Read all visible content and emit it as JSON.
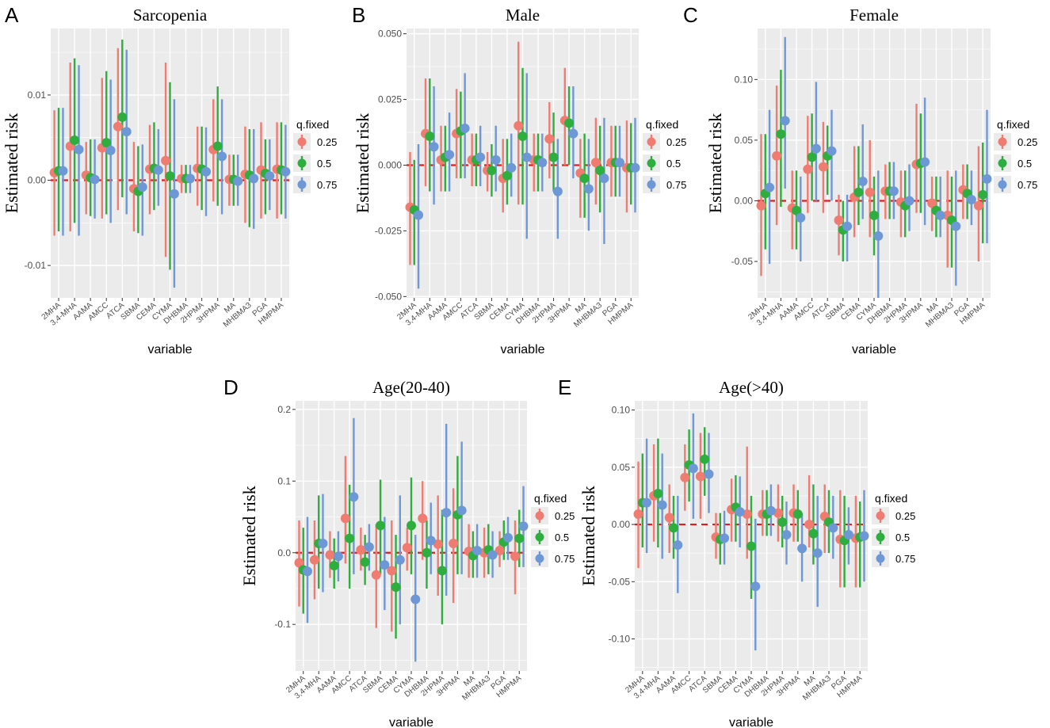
{
  "colors": {
    "q25": "#F07B71",
    "q50": "#2DAE3E",
    "q75": "#6E97D6",
    "ref_line": "#E41A1C",
    "panel_bg": "#EBEBEB",
    "grid": "#FFFFFF"
  },
  "legend": {
    "title": "q.fixed",
    "labels": [
      "0.25",
      "0.5",
      "0.75"
    ]
  },
  "chart_data": [
    {
      "label": "A",
      "title": "Sarcopenia",
      "type": "pointrange",
      "ylabel": "Estimated risk",
      "xlabel": "variable",
      "ylim": [
        -0.0138,
        0.0178
      ],
      "yticks": [
        -0.01,
        0.0,
        0.01
      ],
      "ytick_labels": [
        "-0.01",
        "0.00",
        "0.01"
      ],
      "categories": [
        "2MHA",
        "3,4-MHA",
        "AAMA",
        "AMCC",
        "ATCA",
        "SBMA",
        "CEMA",
        "CYMA",
        "DHBMA",
        "2HPMA",
        "3HPMA",
        "MA",
        "MHBMA3",
        "PGA",
        "HMPMA"
      ],
      "series": [
        {
          "name": "0.25",
          "estimate": [
            0.0009,
            0.004,
            0.0006,
            0.0038,
            0.0063,
            -0.001,
            0.0013,
            0.0023,
            0.0002,
            0.0014,
            0.0036,
            0.0001,
            0.0007,
            0.0012,
            0.0013
          ],
          "lower": [
            -0.0065,
            -0.006,
            -0.004,
            -0.0045,
            -0.0035,
            -0.006,
            -0.004,
            -0.009,
            -0.0015,
            -0.003,
            -0.0025,
            -0.003,
            -0.005,
            -0.0045,
            -0.0045
          ],
          "upper": [
            0.0082,
            0.0138,
            0.0045,
            0.012,
            0.0155,
            0.0045,
            0.0065,
            0.0138,
            0.0018,
            0.0063,
            0.0095,
            0.003,
            0.0063,
            0.0068,
            0.0068
          ]
        },
        {
          "name": "0.5",
          "estimate": [
            0.0011,
            0.0047,
            0.0003,
            0.0044,
            0.0074,
            -0.0013,
            0.0014,
            0.0005,
            0.0002,
            0.0013,
            0.004,
            0.0001,
            0.0006,
            0.0008,
            0.0012
          ],
          "lower": [
            -0.006,
            -0.005,
            -0.0042,
            -0.004,
            -0.002,
            -0.0062,
            -0.0035,
            -0.0105,
            -0.0015,
            -0.0035,
            -0.003,
            -0.003,
            -0.0055,
            -0.004,
            -0.004
          ],
          "upper": [
            0.0085,
            0.0143,
            0.0048,
            0.0128,
            0.0165,
            0.004,
            0.0068,
            0.0115,
            0.0018,
            0.0063,
            0.011,
            0.003,
            0.006,
            0.0048,
            0.0068
          ]
        },
        {
          "name": "0.75",
          "estimate": [
            0.0011,
            0.0036,
            0.0001,
            0.0035,
            0.0057,
            -0.0008,
            0.0012,
            -0.0016,
            0.0002,
            0.001,
            0.0028,
            -0.0001,
            0.0002,
            0.0005,
            0.001
          ],
          "lower": [
            -0.0065,
            -0.0065,
            -0.0045,
            -0.005,
            -0.004,
            -0.0065,
            -0.003,
            -0.0126,
            -0.0015,
            -0.0042,
            -0.004,
            -0.003,
            -0.0057,
            -0.0035,
            -0.0045
          ],
          "upper": [
            0.0085,
            0.0135,
            0.0048,
            0.0118,
            0.0153,
            0.0042,
            0.006,
            0.0095,
            0.0018,
            0.0062,
            0.0095,
            0.003,
            0.006,
            0.0048,
            0.0065
          ]
        }
      ]
    },
    {
      "label": "B",
      "title": "Male",
      "type": "pointrange",
      "ylabel": "Estimated risk",
      "xlabel": "variable",
      "ylim": [
        -0.0505,
        0.052
      ],
      "yticks": [
        -0.05,
        -0.025,
        0.0,
        0.025,
        0.05
      ],
      "ytick_labels": [
        "-0.050",
        "-0.025",
        "0.000",
        "0.025",
        "0.050"
      ],
      "categories": [
        "2MHA",
        "3,4-MHA",
        "AAMA",
        "AMCC",
        "ATCA",
        "SBMA",
        "CEMA",
        "CYMA",
        "DHBMA",
        "2HPMA",
        "3HPMA",
        "MA",
        "MHBMA3",
        "PGA",
        "HMPMA"
      ],
      "series": [
        {
          "name": "0.25",
          "estimate": [
            -0.016,
            0.012,
            0.002,
            0.012,
            0.002,
            -0.002,
            -0.005,
            0.015,
            0.002,
            0.01,
            0.017,
            -0.003,
            0.001,
            0.001,
            -0.001
          ],
          "lower": [
            -0.038,
            -0.008,
            -0.01,
            -0.005,
            -0.008,
            -0.01,
            -0.018,
            -0.015,
            -0.01,
            -0.005,
            0.0,
            -0.02,
            -0.015,
            -0.012,
            -0.018
          ],
          "upper": [
            0.005,
            0.033,
            0.015,
            0.029,
            0.012,
            0.005,
            0.01,
            0.047,
            0.012,
            0.024,
            0.037,
            0.01,
            0.018,
            0.015,
            0.017
          ]
        },
        {
          "name": "0.5",
          "estimate": [
            -0.017,
            0.011,
            0.003,
            0.013,
            0.002,
            -0.002,
            -0.004,
            0.011,
            0.002,
            0.003,
            0.016,
            -0.005,
            -0.002,
            0.001,
            -0.001
          ],
          "lower": [
            -0.038,
            -0.01,
            -0.01,
            -0.005,
            -0.008,
            -0.012,
            -0.015,
            -0.015,
            -0.01,
            -0.01,
            0.0,
            -0.02,
            -0.018,
            -0.012,
            -0.015
          ],
          "upper": [
            0.002,
            0.033,
            0.015,
            0.028,
            0.012,
            0.008,
            0.01,
            0.037,
            0.012,
            0.02,
            0.03,
            0.012,
            0.015,
            0.015,
            0.016
          ]
        },
        {
          "name": "0.75",
          "estimate": [
            -0.019,
            0.007,
            0.004,
            0.014,
            0.003,
            0.002,
            -0.001,
            0.003,
            0.001,
            -0.01,
            0.012,
            -0.009,
            -0.005,
            0.001,
            -0.001
          ],
          "lower": [
            -0.047,
            -0.015,
            -0.01,
            -0.005,
            -0.008,
            -0.01,
            -0.012,
            -0.028,
            -0.01,
            -0.028,
            -0.005,
            -0.025,
            -0.03,
            -0.012,
            -0.018
          ],
          "upper": [
            0.008,
            0.03,
            0.02,
            0.035,
            0.015,
            0.015,
            0.012,
            0.035,
            0.012,
            0.01,
            0.03,
            0.01,
            0.018,
            0.015,
            0.018
          ]
        }
      ]
    },
    {
      "label": "C",
      "title": "Female",
      "type": "pointrange",
      "ylabel": "Estimated risk",
      "xlabel": "variable",
      "ylim": [
        -0.08,
        0.142
      ],
      "yticks": [
        -0.05,
        0.0,
        0.05,
        0.1
      ],
      "ytick_labels": [
        "-0.05",
        "0.00",
        "0.05",
        "0.10"
      ],
      "categories": [
        "2MHA",
        "3,4-MHA",
        "AAMA",
        "AMCC",
        "ATCA",
        "SBMA",
        "CEMA",
        "CYMA",
        "DHBMA",
        "2HPMA",
        "3HPMA",
        "MA",
        "MHBMA3",
        "PGA",
        "HMPMA"
      ],
      "series": [
        {
          "name": "0.25",
          "estimate": [
            -0.004,
            0.037,
            -0.006,
            0.026,
            0.028,
            -0.016,
            0.003,
            0.007,
            0.008,
            -0.001,
            0.03,
            -0.002,
            -0.012,
            0.009,
            -0.004
          ],
          "lower": [
            -0.062,
            -0.02,
            -0.04,
            -0.01,
            -0.01,
            -0.045,
            -0.03,
            -0.03,
            -0.015,
            -0.03,
            -0.01,
            -0.025,
            -0.055,
            -0.015,
            -0.05
          ],
          "upper": [
            0.055,
            0.095,
            0.025,
            0.07,
            0.065,
            0.005,
            0.045,
            0.05,
            0.03,
            0.025,
            0.08,
            0.02,
            0.025,
            0.03,
            0.045
          ]
        },
        {
          "name": "0.5",
          "estimate": [
            0.006,
            0.055,
            -0.008,
            0.036,
            0.037,
            -0.024,
            0.007,
            -0.012,
            0.008,
            -0.004,
            0.031,
            -0.008,
            -0.016,
            0.006,
            0.005
          ],
          "lower": [
            -0.04,
            -0.005,
            -0.04,
            0.0,
            0.005,
            -0.05,
            -0.02,
            -0.045,
            -0.015,
            -0.03,
            -0.01,
            -0.03,
            -0.055,
            -0.015,
            -0.035
          ],
          "upper": [
            0.055,
            0.108,
            0.025,
            0.072,
            0.062,
            0.0,
            0.045,
            0.02,
            0.032,
            0.025,
            0.072,
            0.02,
            0.02,
            0.03,
            0.048
          ]
        },
        {
          "name": "0.75",
          "estimate": [
            0.011,
            0.066,
            -0.014,
            0.043,
            0.041,
            -0.021,
            0.016,
            -0.029,
            0.008,
            0.0,
            0.032,
            -0.012,
            -0.021,
            0.001,
            0.018
          ],
          "lower": [
            -0.052,
            0.01,
            -0.05,
            0.0,
            0.0,
            -0.05,
            -0.015,
            -0.08,
            -0.015,
            -0.025,
            -0.02,
            -0.03,
            -0.07,
            -0.02,
            -0.035
          ],
          "upper": [
            0.075,
            0.135,
            0.02,
            0.098,
            0.075,
            0.005,
            0.063,
            0.025,
            0.032,
            0.03,
            0.085,
            0.02,
            0.025,
            0.025,
            0.075
          ]
        }
      ]
    },
    {
      "label": "D",
      "title": "Age(20-40)",
      "type": "pointrange",
      "ylabel": "Estimated risk",
      "xlabel": "variable",
      "ylim": [
        -0.165,
        0.212
      ],
      "yticks": [
        -0.1,
        0.0,
        0.1,
        0.2
      ],
      "ytick_labels": [
        "-0.1",
        "0.0",
        "0.1",
        "0.2"
      ],
      "categories": [
        "2MHA",
        "3,4-MHA",
        "AAMA",
        "AMCC",
        "ATCA",
        "SBMA",
        "CEMA",
        "CYMA",
        "DHBMA",
        "2HPMA",
        "3HPMA",
        "MA",
        "MHBMA3",
        "PGA",
        "HMPMA"
      ],
      "series": [
        {
          "name": "0.25",
          "estimate": [
            -0.014,
            -0.01,
            -0.003,
            0.048,
            0.004,
            -0.031,
            -0.025,
            0.007,
            0.048,
            0.012,
            0.013,
            0.002,
            0.0,
            0.003,
            -0.005
          ],
          "lower": [
            -0.075,
            -0.065,
            -0.035,
            -0.015,
            -0.025,
            -0.105,
            -0.11,
            -0.025,
            -0.01,
            -0.06,
            -0.07,
            -0.035,
            -0.035,
            -0.02,
            -0.058
          ],
          "upper": [
            0.045,
            0.045,
            0.03,
            0.135,
            0.035,
            0.04,
            0.045,
            0.035,
            0.1,
            0.08,
            0.09,
            0.04,
            0.035,
            0.03,
            0.045
          ]
        },
        {
          "name": "0.5",
          "estimate": [
            -0.024,
            0.013,
            -0.018,
            0.02,
            -0.013,
            0.038,
            -0.048,
            0.038,
            0.0,
            -0.025,
            0.053,
            -0.004,
            0.004,
            0.015,
            0.02
          ],
          "lower": [
            -0.085,
            -0.05,
            -0.05,
            -0.05,
            -0.045,
            -0.03,
            -0.12,
            -0.03,
            -0.05,
            -0.1,
            -0.03,
            -0.035,
            -0.03,
            -0.01,
            -0.02
          ],
          "upper": [
            0.035,
            0.08,
            0.02,
            0.095,
            0.025,
            0.102,
            0.025,
            0.105,
            0.045,
            0.06,
            0.135,
            0.03,
            0.04,
            0.045,
            0.06
          ]
        },
        {
          "name": "0.75",
          "estimate": [
            -0.026,
            0.013,
            -0.005,
            0.078,
            0.008,
            -0.017,
            -0.01,
            -0.065,
            0.017,
            0.056,
            0.059,
            0.003,
            -0.003,
            0.021,
            0.037
          ],
          "lower": [
            -0.098,
            -0.055,
            -0.04,
            -0.03,
            -0.025,
            -0.08,
            -0.1,
            -0.152,
            -0.03,
            -0.06,
            -0.03,
            -0.035,
            -0.035,
            -0.01,
            -0.02
          ],
          "upper": [
            0.05,
            0.082,
            0.03,
            0.188,
            0.04,
            0.05,
            0.08,
            0.025,
            0.07,
            0.18,
            0.155,
            0.04,
            0.03,
            0.05,
            0.093
          ]
        }
      ]
    },
    {
      "label": "E",
      "title": "Age(>40)",
      "type": "pointrange",
      "ylabel": "Estimated risk",
      "xlabel": "variable",
      "ylim": [
        -0.128,
        0.108
      ],
      "yticks": [
        -0.1,
        -0.05,
        0.0,
        0.05,
        0.1
      ],
      "ytick_labels": [
        "-0.10",
        "-0.05",
        "0.00",
        "0.05",
        "0.10"
      ],
      "categories": [
        "2MHA",
        "3,4-MHA",
        "AAMA",
        "AMCC",
        "ATCA",
        "SBMA",
        "CEMA",
        "CYMA",
        "DHBMA",
        "2HPMA",
        "3HPMA",
        "MA",
        "MHBMA3",
        "PGA",
        "HMPMA"
      ],
      "series": [
        {
          "name": "0.25",
          "estimate": [
            0.009,
            0.025,
            0.006,
            0.041,
            0.042,
            -0.011,
            0.013,
            0.009,
            0.009,
            0.01,
            0.01,
            0.0,
            0.007,
            -0.013,
            -0.012
          ],
          "lower": [
            -0.038,
            -0.015,
            -0.025,
            0.012,
            0.005,
            -0.03,
            -0.015,
            -0.03,
            -0.01,
            -0.015,
            -0.015,
            -0.02,
            -0.025,
            -0.055,
            -0.055
          ],
          "upper": [
            0.055,
            0.07,
            0.035,
            0.07,
            0.08,
            0.01,
            0.04,
            0.068,
            0.03,
            0.035,
            0.035,
            0.043,
            0.035,
            0.03,
            0.025
          ]
        },
        {
          "name": "0.5",
          "estimate": [
            0.019,
            0.027,
            -0.003,
            0.052,
            0.057,
            -0.013,
            0.015,
            -0.019,
            0.009,
            0.002,
            0.009,
            -0.008,
            0.002,
            -0.014,
            -0.011
          ],
          "lower": [
            -0.02,
            -0.02,
            -0.03,
            0.02,
            0.025,
            -0.035,
            -0.015,
            -0.065,
            -0.01,
            -0.02,
            -0.015,
            -0.035,
            -0.025,
            -0.055,
            -0.055
          ],
          "upper": [
            0.062,
            0.075,
            0.025,
            0.083,
            0.085,
            0.01,
            0.043,
            0.025,
            0.03,
            0.025,
            0.03,
            0.035,
            0.03,
            0.025,
            0.02
          ]
        },
        {
          "name": "0.75",
          "estimate": [
            0.019,
            0.017,
            -0.018,
            0.049,
            0.044,
            -0.012,
            0.011,
            -0.054,
            0.012,
            -0.009,
            -0.021,
            -0.025,
            -0.003,
            -0.009,
            -0.01
          ],
          "lower": [
            -0.025,
            -0.03,
            -0.06,
            0.005,
            0.01,
            -0.035,
            -0.02,
            -0.11,
            -0.01,
            -0.035,
            -0.05,
            -0.072,
            -0.03,
            -0.035,
            -0.05
          ],
          "upper": [
            0.075,
            0.062,
            0.025,
            0.097,
            0.08,
            0.012,
            0.042,
            0.005,
            0.035,
            0.02,
            0.01,
            0.025,
            0.025,
            0.015,
            0.03
          ]
        }
      ]
    }
  ]
}
